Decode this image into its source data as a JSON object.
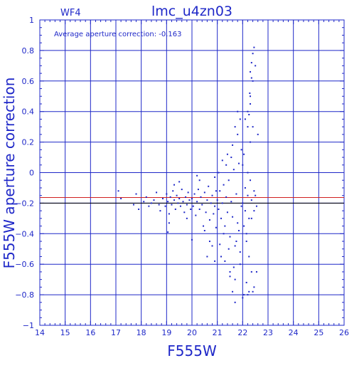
{
  "chart_data": {
    "type": "scatter",
    "title": "lmc_u4zn03",
    "panel_label": "WF4",
    "annotation": "Average aperture correction:  -0.163",
    "xlabel": "F555W",
    "ylabel": "F555W aperture correction",
    "xlim": [
      14,
      26
    ],
    "ylim": [
      -1,
      1
    ],
    "x_ticks": [
      {
        "value": 14,
        "label": "14"
      },
      {
        "value": 15,
        "label": "15"
      },
      {
        "value": 16,
        "label": "16"
      },
      {
        "value": 17,
        "label": "17"
      },
      {
        "value": 18,
        "label": "18"
      },
      {
        "value": 19,
        "label": "19"
      },
      {
        "value": 20,
        "label": "20"
      },
      {
        "value": 21,
        "label": "21"
      },
      {
        "value": 22,
        "label": "22"
      },
      {
        "value": 23,
        "label": "23"
      },
      {
        "value": 24,
        "label": "24"
      },
      {
        "value": 25,
        "label": "25"
      },
      {
        "value": 26,
        "label": "26"
      }
    ],
    "y_ticks": [
      {
        "value": -1,
        "label": "−1"
      },
      {
        "value": -0.8,
        "label": "−0.8"
      },
      {
        "value": -0.6,
        "label": "−0.6"
      },
      {
        "value": -0.4,
        "label": "−0.4"
      },
      {
        "value": -0.2,
        "label": "−0.2"
      },
      {
        "value": 0,
        "label": "0"
      },
      {
        "value": 0.2,
        "label": "0.2"
      },
      {
        "value": 0.4,
        "label": "0.4"
      },
      {
        "value": 0.6,
        "label": "0.6"
      },
      {
        "value": 0.8,
        "label": "0.8"
      },
      {
        "value": 1,
        "label": "1"
      }
    ],
    "grid": true,
    "reference_lines": [
      {
        "y": -0.163,
        "color": "#d02020"
      },
      {
        "y": -0.2,
        "color": "#000000"
      }
    ],
    "colors": {
      "axis": "#1f28c8",
      "points": "#1f28c8"
    },
    "points": [
      [
        17.1,
        -0.12
      ],
      [
        17.2,
        -0.17
      ],
      [
        17.7,
        -0.21
      ],
      [
        17.8,
        -0.14
      ],
      [
        17.9,
        -0.24
      ],
      [
        18.1,
        -0.19
      ],
      [
        18.2,
        -0.16
      ],
      [
        18.3,
        -0.22
      ],
      [
        18.4,
        -0.2
      ],
      [
        18.5,
        -0.18
      ],
      [
        18.6,
        -0.13
      ],
      [
        18.7,
        -0.21
      ],
      [
        18.75,
        -0.25
      ],
      [
        18.85,
        -0.17
      ],
      [
        18.95,
        -0.22
      ],
      [
        19.0,
        -0.14
      ],
      [
        19.05,
        -0.19
      ],
      [
        19.1,
        -0.27
      ],
      [
        19.15,
        -0.16
      ],
      [
        19.2,
        -0.21
      ],
      [
        19.25,
        -0.12
      ],
      [
        19.3,
        -0.18
      ],
      [
        19.35,
        -0.24
      ],
      [
        19.4,
        -0.15
      ],
      [
        19.45,
        -0.2
      ],
      [
        19.5,
        -0.17
      ],
      [
        19.55,
        -0.22
      ],
      [
        19.6,
        -0.11
      ],
      [
        19.65,
        -0.19
      ],
      [
        19.7,
        -0.26
      ],
      [
        19.75,
        -0.16
      ],
      [
        19.8,
        -0.21
      ],
      [
        19.85,
        -0.13
      ],
      [
        19.9,
        -0.18
      ],
      [
        19.95,
        -0.24
      ],
      [
        19.1,
        -0.33
      ],
      [
        19.05,
        -0.39
      ],
      [
        19.3,
        -0.08
      ],
      [
        19.5,
        -0.06
      ],
      [
        19.8,
        -0.3
      ],
      [
        20.0,
        -0.17
      ],
      [
        20.05,
        -0.22
      ],
      [
        20.1,
        -0.14
      ],
      [
        20.15,
        -0.28
      ],
      [
        20.2,
        -0.19
      ],
      [
        20.25,
        -0.11
      ],
      [
        20.3,
        -0.24
      ],
      [
        20.35,
        -0.16
      ],
      [
        20.4,
        -0.21
      ],
      [
        20.45,
        -0.35
      ],
      [
        20.5,
        -0.13
      ],
      [
        20.55,
        -0.26
      ],
      [
        20.6,
        -0.18
      ],
      [
        20.65,
        -0.09
      ],
      [
        20.7,
        -0.31
      ],
      [
        20.75,
        -0.2
      ],
      [
        20.8,
        -0.15
      ],
      [
        20.85,
        -0.27
      ],
      [
        20.9,
        -0.22
      ],
      [
        20.95,
        -0.12
      ],
      [
        20.3,
        -0.05
      ],
      [
        20.5,
        -0.38
      ],
      [
        20.7,
        -0.45
      ],
      [
        20.9,
        -0.03
      ],
      [
        20.0,
        -0.44
      ],
      [
        20.2,
        -0.02
      ],
      [
        20.6,
        -0.55
      ],
      [
        20.95,
        -0.36
      ],
      [
        21.0,
        -0.18
      ],
      [
        21.05,
        -0.24
      ],
      [
        21.1,
        -0.12
      ],
      [
        21.15,
        -0.3
      ],
      [
        21.2,
        -0.2
      ],
      [
        21.25,
        -0.08
      ],
      [
        21.3,
        -0.35
      ],
      [
        21.35,
        -0.16
      ],
      [
        21.4,
        -0.26
      ],
      [
        21.45,
        -0.05
      ],
      [
        21.5,
        -0.42
      ],
      [
        21.55,
        -0.19
      ],
      [
        21.6,
        -0.29
      ],
      [
        21.65,
        0.02
      ],
      [
        21.7,
        -0.48
      ],
      [
        21.75,
        -0.14
      ],
      [
        21.8,
        -0.33
      ],
      [
        21.85,
        0.06
      ],
      [
        21.9,
        -0.52
      ],
      [
        21.95,
        -0.22
      ],
      [
        21.1,
        -0.47
      ],
      [
        21.2,
        0.08
      ],
      [
        21.3,
        -0.58
      ],
      [
        21.4,
        0.12
      ],
      [
        21.5,
        -0.65
      ],
      [
        21.6,
        0.18
      ],
      [
        21.7,
        -0.7
      ],
      [
        21.8,
        0.25
      ],
      [
        21.9,
        -0.6
      ],
      [
        21.05,
        0.0
      ],
      [
        21.15,
        -0.55
      ],
      [
        21.25,
        -0.4
      ],
      [
        21.35,
        0.05
      ],
      [
        21.45,
        -0.5
      ],
      [
        21.55,
        0.1
      ],
      [
        21.65,
        -0.62
      ],
      [
        21.75,
        -0.45
      ],
      [
        21.85,
        -0.38
      ],
      [
        21.95,
        0.15
      ],
      [
        22.0,
        -0.2
      ],
      [
        22.05,
        -0.35
      ],
      [
        22.1,
        -0.1
      ],
      [
        22.15,
        -0.45
      ],
      [
        22.2,
        0.0
      ],
      [
        22.25,
        -0.55
      ],
      [
        22.3,
        0.2
      ],
      [
        22.35,
        -0.65
      ],
      [
        22.4,
        0.3
      ],
      [
        22.45,
        -0.75
      ],
      [
        22.5,
        -0.15
      ],
      [
        22.05,
        -0.8
      ],
      [
        22.1,
        0.35
      ],
      [
        22.15,
        -0.72
      ],
      [
        22.2,
        0.4
      ],
      [
        22.25,
        -0.78
      ],
      [
        22.3,
        0.5
      ],
      [
        22.35,
        -0.3
      ],
      [
        22.4,
        0.6
      ],
      [
        22.45,
        -0.25
      ],
      [
        22.5,
        0.7
      ],
      [
        22.45,
        0.82
      ],
      [
        22.4,
        0.78
      ],
      [
        22.35,
        0.72
      ],
      [
        22.3,
        0.66
      ],
      [
        22.35,
        0.62
      ],
      [
        22.28,
        0.52
      ],
      [
        22.3,
        0.45
      ],
      [
        22.25,
        0.38
      ],
      [
        22.2,
        0.3
      ],
      [
        22.0,
        -0.82
      ],
      [
        22.2,
        -0.8
      ],
      [
        22.4,
        -0.78
      ],
      [
        22.1,
        -0.25
      ],
      [
        22.2,
        -0.15
      ],
      [
        22.3,
        -0.05
      ],
      [
        22.0,
        0.05
      ],
      [
        22.05,
        0.12
      ],
      [
        22.15,
        -0.4
      ],
      [
        22.25,
        -0.3
      ],
      [
        22.35,
        -0.18
      ],
      [
        22.45,
        -0.12
      ],
      [
        22.55,
        -0.22
      ],
      [
        22.6,
        0.25
      ],
      [
        22.55,
        -0.65
      ],
      [
        21.8,
        0.4
      ],
      [
        21.9,
        0.35
      ],
      [
        21.7,
        0.3
      ],
      [
        21.6,
        -0.78
      ],
      [
        21.7,
        -0.85
      ],
      [
        21.5,
        -0.68
      ],
      [
        20.8,
        -0.48
      ],
      [
        20.9,
        -0.58
      ]
    ]
  }
}
